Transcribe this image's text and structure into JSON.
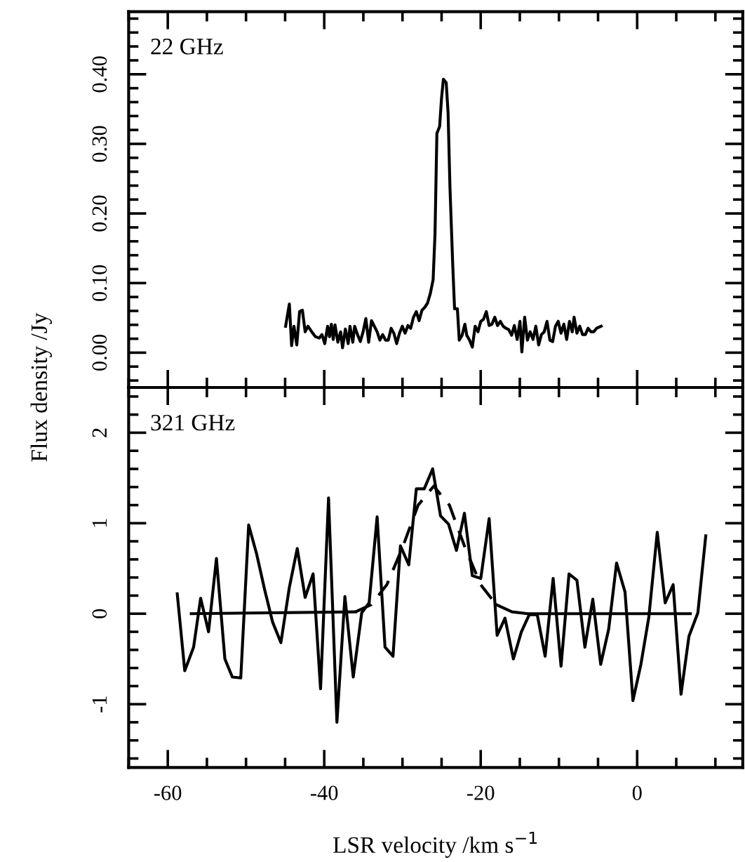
{
  "chart_data": [
    {
      "type": "line",
      "ylabel": "Flux density /Jy",
      "annotations": [
        "22 GHz"
      ],
      "xlim": [
        -65,
        13.5
      ],
      "xticks": [
        -60,
        -40,
        -20,
        0
      ],
      "ylim": [
        -0.05,
        0.49
      ],
      "yticks": [
        {
          "value": 0,
          "label": "0.00"
        },
        {
          "value": 0.1,
          "label": "0.10"
        },
        {
          "value": 0.2,
          "label": "0.20"
        },
        {
          "value": 0.3,
          "label": "0.30"
        },
        {
          "value": 0.4,
          "label": "0.40"
        }
      ],
      "tick_labels": "y",
      "grid": false,
      "legend": false,
      "series": [
        {
          "color": "#000000",
          "line_style": "solid",
          "x": [
            -44.94,
            -44.46,
            -44.17,
            -43.87,
            -43.51,
            -43.15,
            -42.79,
            -42.44,
            -42.08,
            -41.6,
            -41.12,
            -40.64,
            -40.29,
            -39.93,
            -39.57,
            -39.33,
            -39.09,
            -38.85,
            -38.62,
            -38.26,
            -37.9,
            -37.66,
            -37.3,
            -36.94,
            -36.71,
            -36.35,
            -36.11,
            -35.75,
            -35.39,
            -35.03,
            -34.68,
            -34.32,
            -33.96,
            -33.6,
            -33.24,
            -32.89,
            -32.53,
            -32.17,
            -31.81,
            -31.45,
            -31.1,
            -30.74,
            -30.38,
            -30.02,
            -29.66,
            -29.3,
            -28.95,
            -28.59,
            -28.23,
            -27.87,
            -27.51,
            -27.16,
            -26.8,
            -26.44,
            -26.08,
            -25.84,
            -25.6,
            -25.25,
            -25.01,
            -24.77,
            -24.41,
            -24.17,
            -23.93,
            -23.57,
            -23.34,
            -22.98,
            -22.74,
            -22.38,
            -22.02,
            -21.78,
            -21.43,
            -21.07,
            -20.71,
            -20.35,
            -19.99,
            -19.64,
            -19.28,
            -18.92,
            -18.56,
            -18.2,
            -17.85,
            -17.49,
            -17.13,
            -16.77,
            -16.41,
            -16.05,
            -15.7,
            -15.34,
            -14.98,
            -14.74,
            -14.38,
            -14.03,
            -13.67,
            -13.31,
            -12.95,
            -12.59,
            -12.24,
            -11.88,
            -11.52,
            -11.16,
            -10.8,
            -10.44,
            -10.09,
            -9.73,
            -9.37,
            -9.01,
            -8.65,
            -8.3,
            -8.06,
            -7.7,
            -7.34,
            -6.98,
            -6.62,
            -6.27,
            -5.91,
            -5.55,
            -5.19,
            -4.6
          ],
          "values": [
            0.038,
            0.07,
            0.01,
            0.038,
            0.011,
            0.059,
            0.061,
            0.03,
            0.038,
            0.03,
            0.023,
            0.021,
            0.026,
            0.013,
            0.038,
            0.023,
            0.041,
            0.019,
            0.04,
            0.015,
            0.03,
            0.007,
            0.034,
            0.013,
            0.038,
            0.015,
            0.038,
            0.026,
            0.016,
            0.03,
            0.049,
            0.015,
            0.046,
            0.038,
            0.03,
            0.018,
            0.026,
            0.018,
            0.018,
            0.035,
            0.028,
            0.013,
            0.028,
            0.038,
            0.028,
            0.039,
            0.035,
            0.051,
            0.059,
            0.046,
            0.061,
            0.065,
            0.071,
            0.085,
            0.105,
            0.171,
            0.315,
            0.325,
            0.365,
            0.393,
            0.388,
            0.345,
            0.238,
            0.125,
            0.063,
            0.063,
            0.018,
            0.025,
            0.041,
            0.025,
            0.018,
            0.008,
            0.038,
            0.03,
            0.045,
            0.048,
            0.059,
            0.039,
            0.041,
            0.051,
            0.039,
            0.045,
            0.038,
            0.035,
            0.033,
            0.025,
            0.039,
            0.019,
            0.045,
            0.001,
            0.051,
            0.018,
            0.03,
            0.019,
            0.038,
            0.011,
            0.026,
            0.03,
            0.045,
            0.018,
            0.016,
            0.038,
            0.045,
            0.028,
            0.041,
            0.019,
            0.045,
            0.03,
            0.051,
            0.028,
            0.038,
            0.026,
            0.026,
            0.035,
            0.03,
            0.03,
            0.035,
            0.038
          ]
        }
      ]
    },
    {
      "type": "line",
      "xlabel": "LSR velocity /km s$^{−1}$",
      "annotations": [
        "321 GHz"
      ],
      "xlim": [
        -65,
        13.5
      ],
      "xticks": [
        -60,
        -40,
        -20,
        0
      ],
      "ylim": [
        -1.7,
        2.5
      ],
      "yticks": [
        -1,
        0,
        1,
        2
      ],
      "grid": false,
      "legend": false,
      "series": [
        {
          "color": "#000000",
          "line_style": "solid",
          "x": [
            -58.79,
            -57.83,
            -56.7,
            -55.8,
            -54.79,
            -53.78,
            -52.7,
            -51.75,
            -50.67,
            -49.66,
            -48.64,
            -47.63,
            -46.61,
            -45.54,
            -44.46,
            -43.45,
            -42.44,
            -41.42,
            -40.47,
            -39.45,
            -38.38,
            -37.36,
            -36.29,
            -35.21,
            -34.26,
            -33.24,
            -32.23,
            -31.21,
            -30.26,
            -29.19,
            -28.23,
            -27.22,
            -26.14,
            -25.13,
            -24.11,
            -23.1,
            -22.08,
            -21.07,
            -19.99,
            -18.92,
            -17.9,
            -16.89,
            -15.82,
            -14.8,
            -13.79,
            -12.77,
            -11.76,
            -10.74,
            -9.73,
            -8.71,
            -7.7,
            -6.68,
            -5.67,
            -4.66,
            -3.64,
            -2.63,
            -1.55,
            -0.54,
            0.48,
            1.49,
            2.57,
            3.58,
            4.6,
            5.61,
            6.62,
            7.76,
            8.77
          ],
          "values": [
            0.22,
            -0.63,
            -0.37,
            0.17,
            -0.2,
            0.61,
            -0.5,
            -0.7,
            -0.71,
            0.98,
            0.66,
            0.27,
            -0.09,
            -0.32,
            0.29,
            0.72,
            0.18,
            0.44,
            -0.83,
            1.28,
            -1.2,
            0.19,
            -0.7,
            0.01,
            0.12,
            1.07,
            -0.37,
            -0.47,
            0.75,
            0.54,
            1.38,
            1.38,
            1.6,
            1.08,
            0.99,
            0.7,
            1.11,
            0.42,
            0.39,
            1.05,
            -0.24,
            -0.05,
            -0.5,
            -0.2,
            -0.01,
            -0.01,
            -0.47,
            0.39,
            -0.58,
            0.44,
            0.37,
            -0.37,
            0.16,
            -0.56,
            -0.17,
            0.56,
            0.24,
            -0.96,
            -0.56,
            -0.04,
            0.9,
            0.12,
            0.32,
            -0.89,
            -0.25,
            0.01,
            0.86
          ]
        },
        {
          "color": "#000000",
          "line_style": "solid",
          "x": [
            -57,
            -36
          ],
          "values": [
            0,
            0.02
          ]
        },
        {
          "color": "#000000",
          "line_style": "dashed",
          "x": [
            -36,
            -34,
            -32,
            -30,
            -28,
            -26,
            -24,
            -22,
            -20,
            -18
          ],
          "values": [
            0.02,
            0.1,
            0.32,
            0.73,
            1.2,
            1.41,
            1.2,
            0.73,
            0.32,
            0.1
          ]
        },
        {
          "color": "#000000",
          "line_style": "solid",
          "x": [
            -18,
            -16,
            -14,
            6.8
          ],
          "values": [
            0.1,
            0.02,
            0,
            0
          ]
        }
      ]
    }
  ]
}
